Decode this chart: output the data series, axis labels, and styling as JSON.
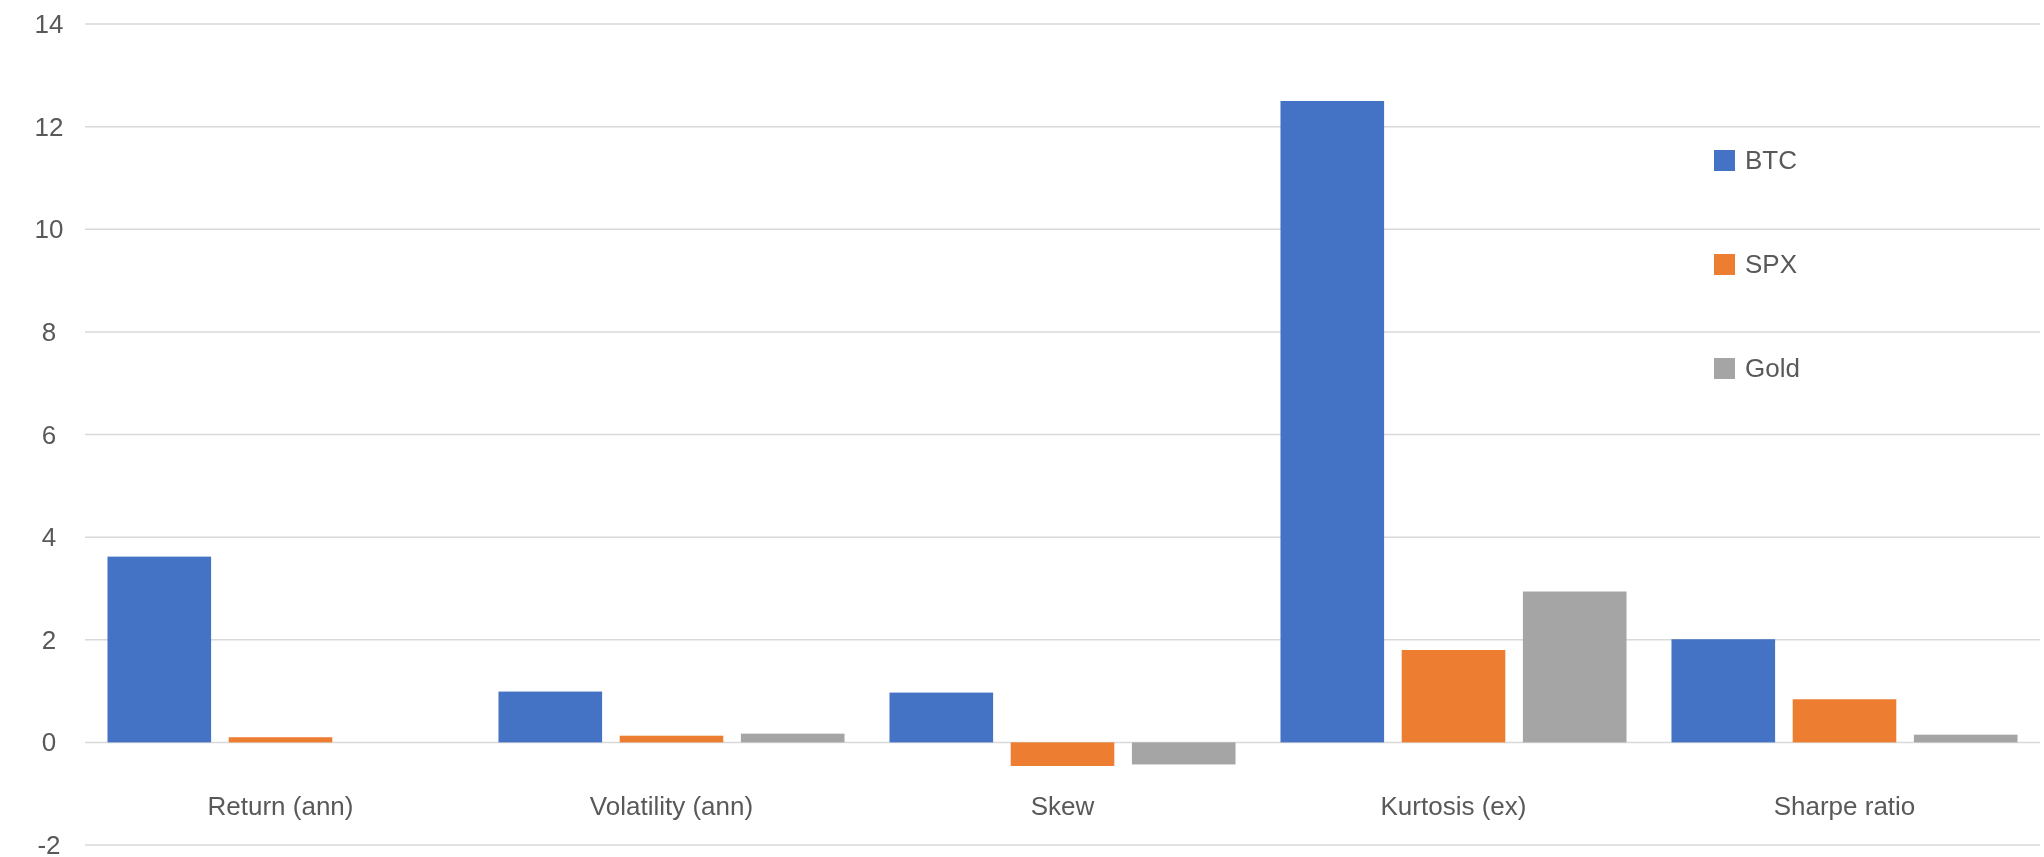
{
  "chart_data": {
    "type": "bar",
    "categories": [
      "Return (ann)",
      "Volatility (ann)",
      "Skew",
      "Kurtosis (ex)",
      "Sharpe ratio"
    ],
    "series": [
      {
        "name": "BTC",
        "color": "#4472c4",
        "values": [
          3.62,
          0.99,
          0.97,
          12.5,
          2.01
        ]
      },
      {
        "name": "SPX",
        "color": "#ed7d31",
        "values": [
          0.1,
          0.13,
          -0.46,
          1.8,
          0.84
        ]
      },
      {
        "name": "Gold",
        "color": "#a5a5a5",
        "values": [
          0,
          0.17,
          -0.43,
          2.94,
          0.15
        ]
      }
    ],
    "ylim": [
      -2,
      14
    ],
    "yticks": [
      -2,
      0,
      2,
      4,
      6,
      8,
      10,
      12,
      14
    ],
    "grid": "y",
    "legend": "right"
  }
}
